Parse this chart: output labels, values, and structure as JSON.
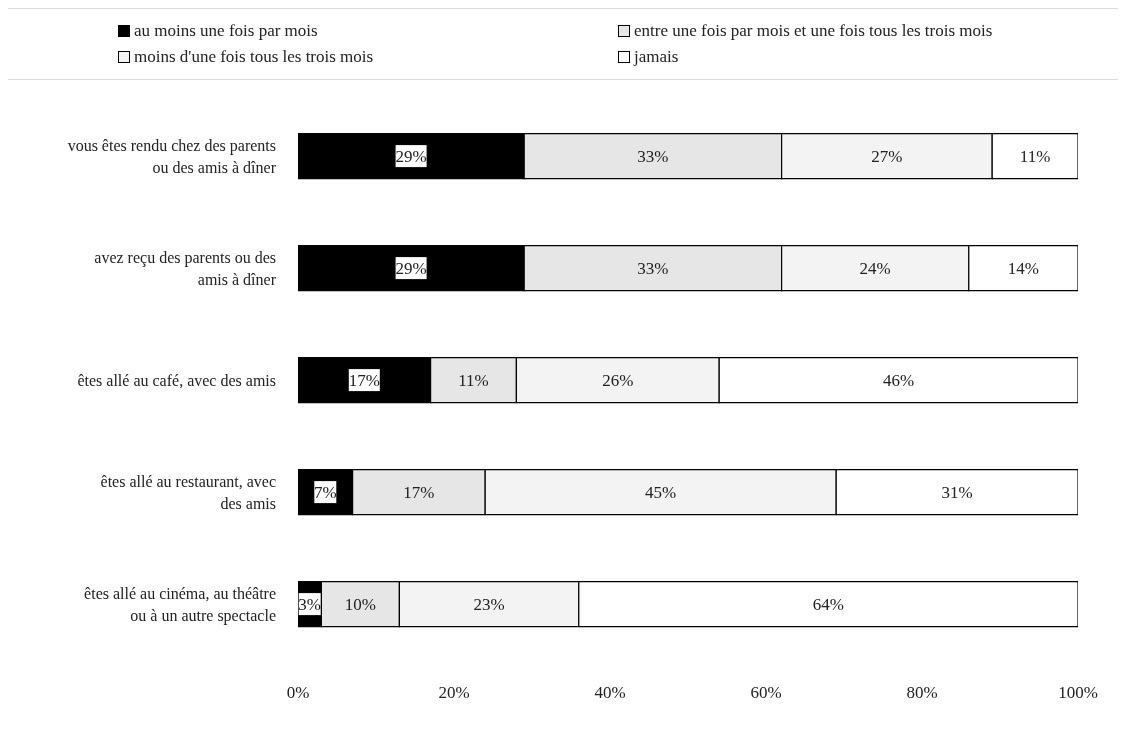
{
  "chart_data": {
    "type": "bar",
    "orientation": "horizontal",
    "stacked": true,
    "legend": "top",
    "grid": false,
    "categories": [
      "vous êtes rendu chez des parents ou des amis à dîner",
      "avez reçu des parents ou des amis à dîner",
      "êtes allé au café, avec des amis",
      "êtes allé au restaurant, avec des amis",
      "êtes allé au cinéma, au théâtre ou à un autre spectacle"
    ],
    "series": [
      {
        "name": "au moins une fois par mois",
        "color": "#000000",
        "values": [
          29,
          29,
          17,
          7,
          3
        ],
        "value_labels": [
          "29%",
          "29%",
          "17%",
          "7%",
          "3%"
        ]
      },
      {
        "name": "entre une fois par mois et une fois tous les trois mois",
        "color": "#e6e6e6",
        "values": [
          33,
          33,
          11,
          17,
          10
        ],
        "value_labels": [
          "33%",
          "33%",
          "11%",
          "17%",
          "10%"
        ]
      },
      {
        "name": "moins d'une fois tous les trois mois",
        "color": "#f3f3f3",
        "values": [
          27,
          24,
          26,
          45,
          23
        ],
        "value_labels": [
          "27%",
          "24%",
          "26%",
          "45%",
          "23%"
        ]
      },
      {
        "name": "jamais",
        "color": "#ffffff",
        "values": [
          11,
          14,
          46,
          31,
          64
        ],
        "value_labels": [
          "11%",
          "14%",
          "46%",
          "31%",
          "64%"
        ]
      }
    ],
    "xlim": [
      0,
      100
    ],
    "xticks": [
      {
        "value": 0,
        "label": "0%"
      },
      {
        "value": 20,
        "label": "20%"
      },
      {
        "value": 40,
        "label": "40%"
      },
      {
        "value": 60,
        "label": "60%"
      },
      {
        "value": 80,
        "label": "80%"
      },
      {
        "value": 100,
        "label": "100%"
      }
    ]
  }
}
